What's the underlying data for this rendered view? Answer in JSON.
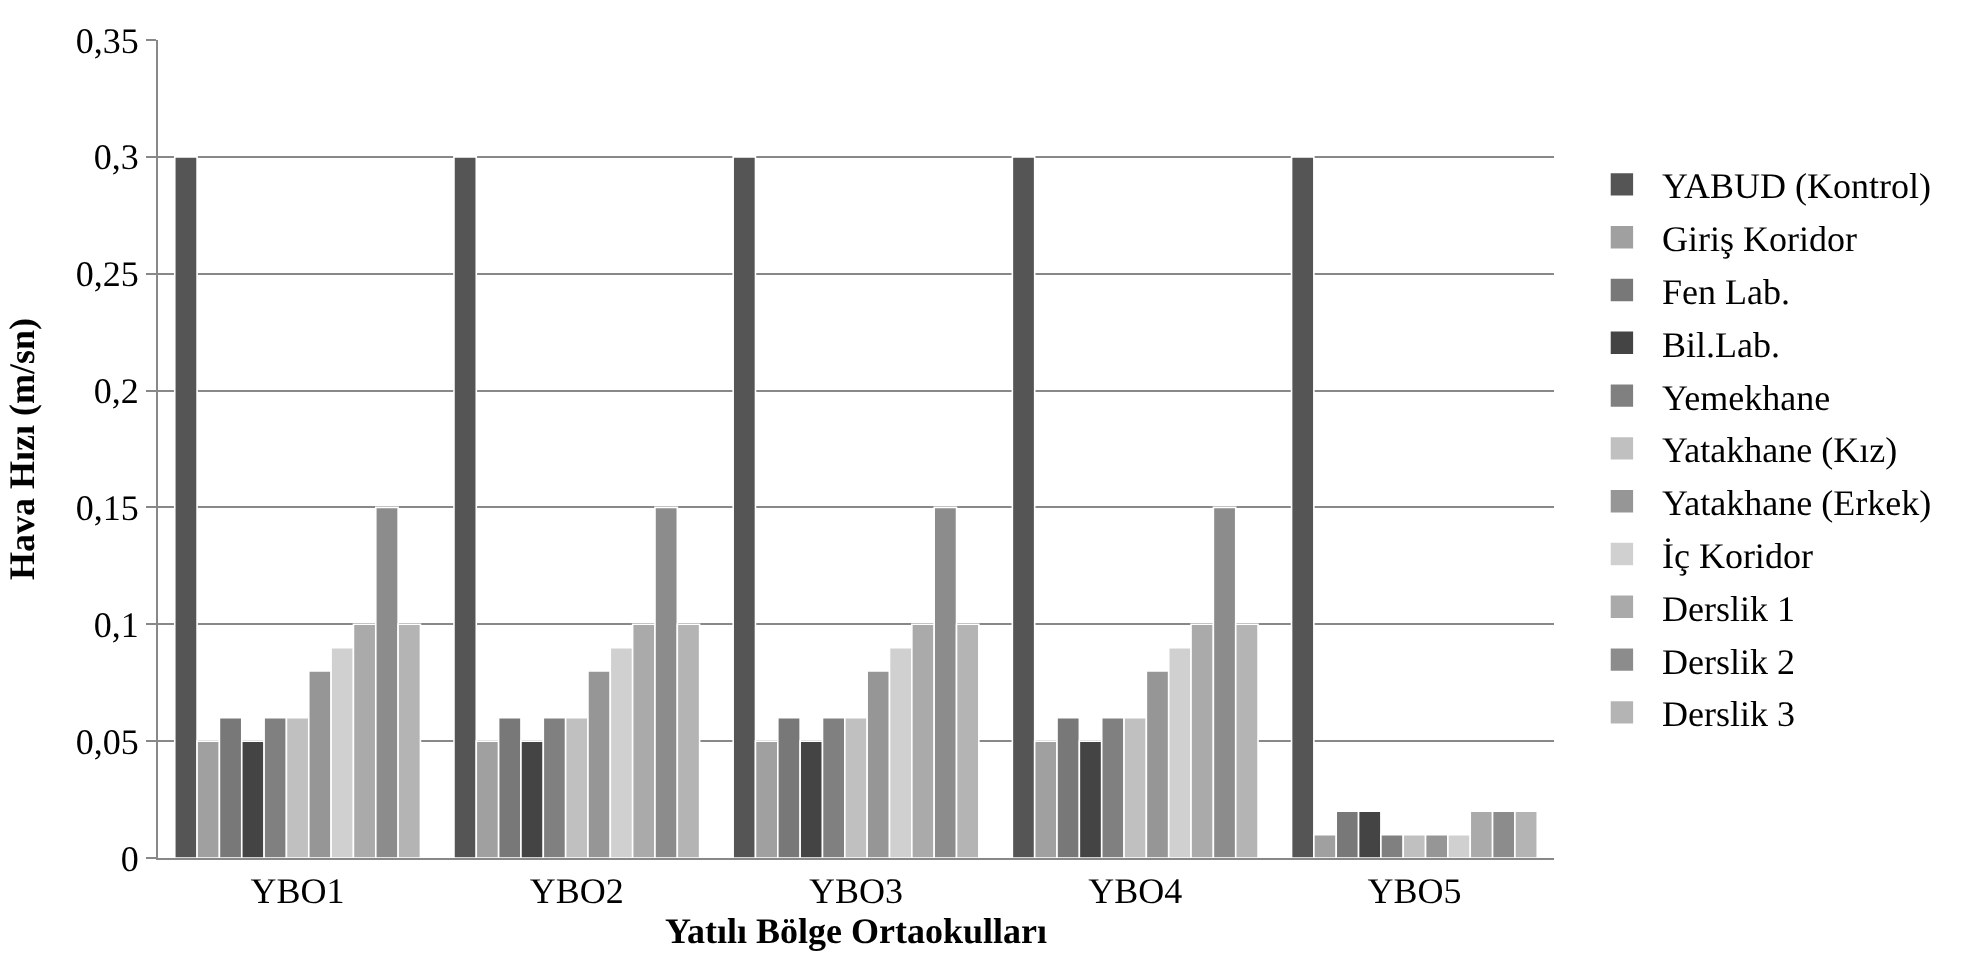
{
  "chart_data": {
    "type": "bar",
    "xlabel": "Yatılı Bölge Ortaokulları",
    "ylabel": "Hava Hızı (m/sn)",
    "categories": [
      "YBO1",
      "YBO2",
      "YBO3",
      "YBO4",
      "YBO5"
    ],
    "series": [
      {
        "name": "YABUD (Kontrol)",
        "color": "#555555",
        "values": [
          0.3,
          0.3,
          0.3,
          0.3,
          0.3
        ]
      },
      {
        "name": "Giriş Koridor",
        "color": "#a0a0a0",
        "values": [
          0.05,
          0.05,
          0.05,
          0.05,
          0.01
        ]
      },
      {
        "name": "Fen Lab.",
        "color": "#787878",
        "values": [
          0.06,
          0.06,
          0.06,
          0.06,
          0.02
        ]
      },
      {
        "name": "Bil.Lab.",
        "color": "#444444",
        "values": [
          0.05,
          0.05,
          0.05,
          0.05,
          0.02
        ]
      },
      {
        "name": "Yemekhane",
        "color": "#808080",
        "values": [
          0.06,
          0.06,
          0.06,
          0.06,
          0.01
        ]
      },
      {
        "name": "Yatakhane (Kız)",
        "color": "#c0c0c0",
        "values": [
          0.06,
          0.06,
          0.06,
          0.06,
          0.01
        ]
      },
      {
        "name": "Yatakhane (Erkek)",
        "color": "#969696",
        "values": [
          0.08,
          0.08,
          0.08,
          0.08,
          0.01
        ]
      },
      {
        "name": "İç Koridor",
        "color": "#d0d0d0",
        "values": [
          0.09,
          0.09,
          0.09,
          0.09,
          0.01
        ]
      },
      {
        "name": "Derslik 1",
        "color": "#aaaaaa",
        "values": [
          0.1,
          0.1,
          0.1,
          0.1,
          0.02
        ]
      },
      {
        "name": "Derslik 2",
        "color": "#8c8c8c",
        "values": [
          0.15,
          0.15,
          0.15,
          0.15,
          0.02
        ]
      },
      {
        "name": "Derslik 3",
        "color": "#b4b4b4",
        "values": [
          0.1,
          0.1,
          0.1,
          0.1,
          0.02
        ]
      }
    ],
    "ylim": [
      0,
      0.35
    ],
    "yticks": [
      {
        "value": 0,
        "label": "0"
      },
      {
        "value": 0.05,
        "label": "0,05"
      },
      {
        "value": 0.1,
        "label": "0,1"
      },
      {
        "value": 0.15,
        "label": "0,15"
      },
      {
        "value": 0.2,
        "label": "0,2"
      },
      {
        "value": 0.25,
        "label": "0,25"
      },
      {
        "value": 0.3,
        "label": "0,3"
      },
      {
        "value": 0.35,
        "label": "0,35"
      }
    ],
    "grid": "y",
    "legend": "right"
  }
}
